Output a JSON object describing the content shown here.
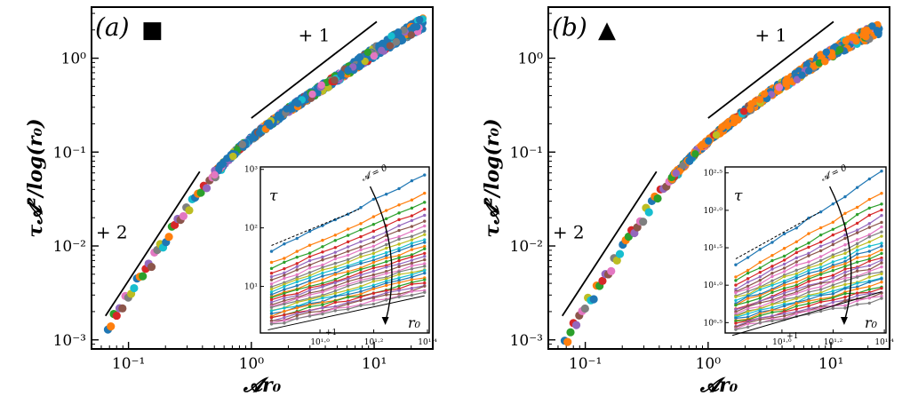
{
  "figure": {
    "colors": [
      "#1f77b4",
      "#ff7f0e",
      "#2ca02c",
      "#d62728",
      "#9467bd",
      "#8c564b",
      "#e377c2",
      "#7f7f7f",
      "#bcbd22",
      "#17becf"
    ]
  },
  "chart_data": [
    {
      "type": "scatter",
      "panel_label": "(a)",
      "marker_symbol": "■",
      "xlabel": "𝓐r₀",
      "ylabel": "τ𝓐²/log(r₀)",
      "xscale": "log",
      "yscale": "log",
      "xlim": [
        0.05,
        30
      ],
      "ylim": [
        0.0008,
        3.5
      ],
      "x_ticks": [
        {
          "v": 0.1,
          "label": "10⁻¹"
        },
        {
          "v": 1,
          "label": "10⁰"
        },
        {
          "v": 10,
          "label": "10¹"
        }
      ],
      "y_ticks": [
        {
          "v": 0.001,
          "label": "10⁻³"
        },
        {
          "v": 0.01,
          "label": "10⁻²"
        },
        {
          "v": 0.1,
          "label": "10⁻¹"
        },
        {
          "v": 1,
          "label": "10⁰"
        }
      ],
      "slope_guides": [
        {
          "label": "+ 2",
          "x": [
            0.065,
            0.38
          ],
          "y": [
            0.0018,
            0.062
          ]
        },
        {
          "label": "+ 1",
          "x": [
            1.0,
            10.5
          ],
          "y": [
            0.23,
            2.45
          ]
        }
      ],
      "collapse_curve": {
        "x": [
          0.068,
          0.1,
          0.15,
          0.22,
          0.35,
          0.5,
          0.8,
          1.2,
          2,
          3,
          5,
          8,
          12,
          18,
          25
        ],
        "y": [
          0.00135,
          0.0029,
          0.0065,
          0.014,
          0.033,
          0.06,
          0.11,
          0.17,
          0.28,
          0.4,
          0.62,
          0.95,
          1.35,
          1.85,
          2.35
        ]
      },
      "inset": {
        "ylabel": "τ",
        "xlabel": "r₀",
        "xscale": "log",
        "yscale": "log",
        "xlim": [
          6.0,
          25.5
        ],
        "ylim": [
          1.6,
          1100
        ],
        "x_ticks": [
          {
            "v": 10,
            "label": "10¹·⁰"
          },
          {
            "v": 15.85,
            "label": "10¹·²"
          },
          {
            "v": 25.12,
            "label": "10¹·⁴"
          }
        ],
        "y_ticks": [
          {
            "v": 10,
            "label": "10¹"
          },
          {
            "v": 100,
            "label": "10²"
          },
          {
            "v": 1000,
            "label": "10³"
          }
        ],
        "arrow_label": "𝓐 = 0",
        "slope_label": "+1",
        "series_count": 28,
        "series_top_start": 40,
        "series_top_end": 800,
        "series_bottom_start": 2.2,
        "series_bottom_end": 8
      }
    },
    {
      "type": "scatter",
      "panel_label": "(b)",
      "marker_symbol": "▲",
      "xlabel": "𝓐r₀",
      "ylabel": "τ𝓐²/log(r₀)",
      "xscale": "log",
      "yscale": "log",
      "xlim": [
        0.05,
        30
      ],
      "ylim": [
        0.0008,
        3.5
      ],
      "x_ticks": [
        {
          "v": 0.1,
          "label": "10⁻¹"
        },
        {
          "v": 1,
          "label": "10⁰"
        },
        {
          "v": 10,
          "label": "10¹"
        }
      ],
      "y_ticks": [
        {
          "v": 0.001,
          "label": "10⁻³"
        },
        {
          "v": 0.01,
          "label": "10⁻²"
        },
        {
          "v": 0.1,
          "label": "10⁻¹"
        },
        {
          "v": 1,
          "label": "10⁰"
        }
      ],
      "slope_guides": [
        {
          "label": "+ 2",
          "x": [
            0.065,
            0.38
          ],
          "y": [
            0.0018,
            0.062
          ]
        },
        {
          "label": "+ 1",
          "x": [
            1.0,
            10.5
          ],
          "y": [
            0.23,
            2.45
          ]
        }
      ],
      "collapse_curve": {
        "x": [
          0.068,
          0.1,
          0.15,
          0.22,
          0.35,
          0.5,
          0.8,
          1.2,
          2,
          3,
          5,
          8,
          12,
          18,
          25
        ],
        "y": [
          0.00095,
          0.0022,
          0.0052,
          0.012,
          0.028,
          0.052,
          0.1,
          0.16,
          0.27,
          0.4,
          0.62,
          0.95,
          1.3,
          1.7,
          2.05
        ]
      },
      "inset": {
        "ylabel": "τ",
        "xlabel": "r₀",
        "xscale": "log",
        "yscale": "log",
        "xlim": [
          6.0,
          25.5
        ],
        "ylim": [
          2.3,
          380
        ],
        "x_ticks": [
          {
            "v": 10,
            "label": "10¹·⁰"
          },
          {
            "v": 15.85,
            "label": "10¹·²"
          },
          {
            "v": 25.12,
            "label": "10¹·⁴"
          }
        ],
        "y_ticks": [
          {
            "v": 3.162,
            "label": "10⁰·⁵"
          },
          {
            "v": 10,
            "label": "10¹·⁰"
          },
          {
            "v": 31.62,
            "label": "10¹·⁵"
          },
          {
            "v": 100,
            "label": "10²·⁰"
          },
          {
            "v": 316.2,
            "label": "10²·⁵"
          }
        ],
        "arrow_label": "𝓐 = 0",
        "slope_label": "+1",
        "series_count": 28,
        "series_top_start": 18,
        "series_top_end": 320,
        "series_bottom_start": 2.6,
        "series_bottom_end": 6.5
      }
    }
  ]
}
